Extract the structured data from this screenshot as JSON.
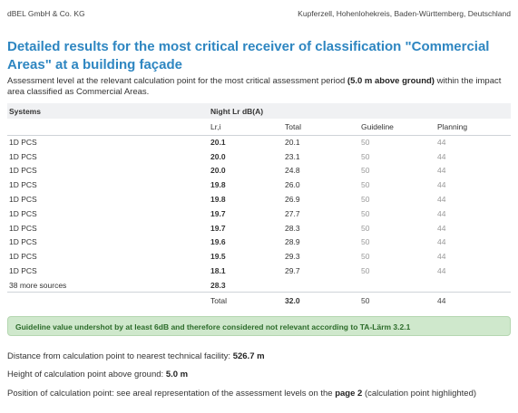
{
  "header": {
    "company": "dBEL GmbH & Co. KG",
    "location": "Kupferzell, Hohenlohekreis, Baden-Württemberg, Deutschland"
  },
  "title": "Detailed results for the most critical receiver of classification \"Commercial Areas\" at a building façade",
  "subtitle": {
    "before": "Assessment level at the relevant calculation point for the most critical assessment period ",
    "bold": "(5.0 m above ground)",
    "after": " within the impact area classified as Commercial Areas."
  },
  "table": {
    "col_systems": "Systems",
    "col_group": "Night Lr dB(A)",
    "col_lri": "Lr,i",
    "col_total": "Total",
    "col_guideline": "Guideline",
    "col_planning": "Planning",
    "rows": [
      {
        "system": "1D PCS",
        "lri": "20.1",
        "total": "20.1",
        "guideline": "50",
        "planning": "44"
      },
      {
        "system": "1D PCS",
        "lri": "20.0",
        "total": "23.1",
        "guideline": "50",
        "planning": "44"
      },
      {
        "system": "1D PCS",
        "lri": "20.0",
        "total": "24.8",
        "guideline": "50",
        "planning": "44"
      },
      {
        "system": "1D PCS",
        "lri": "19.8",
        "total": "26.0",
        "guideline": "50",
        "planning": "44"
      },
      {
        "system": "1D PCS",
        "lri": "19.8",
        "total": "26.9",
        "guideline": "50",
        "planning": "44"
      },
      {
        "system": "1D PCS",
        "lri": "19.7",
        "total": "27.7",
        "guideline": "50",
        "planning": "44"
      },
      {
        "system": "1D PCS",
        "lri": "19.7",
        "total": "28.3",
        "guideline": "50",
        "planning": "44"
      },
      {
        "system": "1D PCS",
        "lri": "19.6",
        "total": "28.9",
        "guideline": "50",
        "planning": "44"
      },
      {
        "system": "1D PCS",
        "lri": "19.5",
        "total": "29.3",
        "guideline": "50",
        "planning": "44"
      },
      {
        "system": "1D PCS",
        "lri": "18.1",
        "total": "29.7",
        "guideline": "50",
        "planning": "44"
      }
    ],
    "more_sources_label": "38 more sources",
    "more_sources_value": "28.3",
    "total_label": "Total",
    "total_value": "32.0",
    "total_guideline": "50",
    "total_planning": "44"
  },
  "notice": "Guideline value undershot by at least 6dB and therefore considered not relevant according to TA-Lärm 3.2.1",
  "details": {
    "distance_label": "Distance from calculation point to nearest technical facility: ",
    "distance_value": "526.7 m",
    "height_label": "Height of calculation point above ground: ",
    "height_value": "5.0 m",
    "position_before": "Position of calculation point: see areal representation of the assessment levels on the ",
    "position_bold": "page 2",
    "position_after": " (calculation point highlighted)"
  }
}
